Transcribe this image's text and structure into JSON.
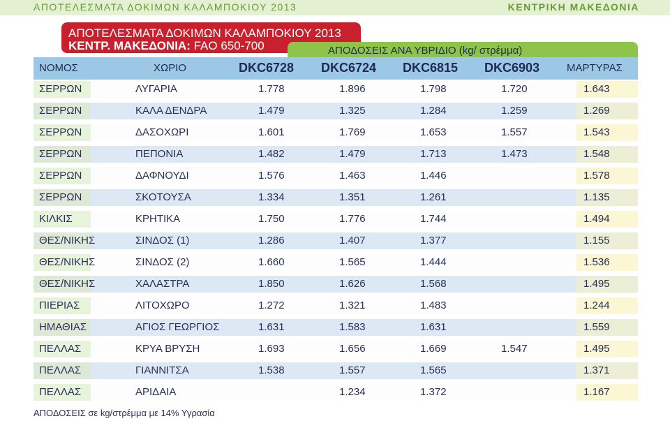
{
  "topbar": {
    "left": "ΑΠΟΤΕΛΕΣΜΑΤΑ ΔΟΚΙΜΩΝ ΚΑΛΑΜΠΟΚΙΟΥ 2013",
    "right": "ΚΕΝΤΡΙΚΗ ΜΑΚΕΔΟΝΙΑ"
  },
  "title": {
    "line1": "ΑΠΟΤΕΛΕΣΜΑΤΑ ΔΟΚΙΜΩΝ ΚΑΛΑΜΠΟΚΙΟΥ 2013",
    "line2_bold": "ΚΕΝΤΡ. ΜΑΚΕΔΟΝΙΑ:",
    "line2_rest": " FAO 650-700"
  },
  "group_header": "ΑΠΟΔΟΣΕΙΣ ΑΝΑ ΥΒΡΙΔΙΟ (kg/ στρέμμα)",
  "headers": {
    "nomos": "ΝΟΜΟΣ",
    "xorio": "ΧΩΡΙΟ",
    "h1": "DKC6728",
    "h2": "DKC6724",
    "h3": "DKC6815",
    "h4": "DKC6903",
    "martyras": "ΜΑΡΤΥΡΑΣ"
  },
  "rows": [
    [
      "ΣΕΡΡΩΝ",
      "ΛΥΓΑΡΙΑ",
      "1.778",
      "1.896",
      "1.798",
      "1.720",
      "1.643"
    ],
    [
      "ΣΕΡΡΩΝ",
      "ΚΑΛΑ ΔΕΝΔΡΑ",
      "1.479",
      "1.325",
      "1.284",
      "1.259",
      "1.269"
    ],
    [
      "ΣΕΡΡΩΝ",
      "ΔΑΣΟΧΩΡΙ",
      "1.601",
      "1.769",
      "1.653",
      "1.557",
      "1.543"
    ],
    [
      "ΣΕΡΡΩΝ",
      "ΠΕΠΟΝΙΑ",
      "1.482",
      "1.479",
      "1.713",
      "1.473",
      "1.548"
    ],
    [
      "ΣΕΡΡΩΝ",
      "ΔΑΦΝΟΥΔΙ",
      "1.576",
      "1.463",
      "1.446",
      "",
      "1.578"
    ],
    [
      "ΣΕΡΡΩΝ",
      "ΣΚΟΤΟΥΣΑ",
      "1.334",
      "1.351",
      "1.261",
      "",
      "1.135"
    ],
    [
      "ΚΙΛΚΙΣ",
      "ΚΡΗΤΙΚΑ",
      "1.750",
      "1.776",
      "1.744",
      "",
      "1.494"
    ],
    [
      "ΘΕΣ/ΝΙΚΗΣ",
      "ΣΙΝΔΟΣ (1)",
      "1.286",
      "1.407",
      "1.377",
      "",
      "1.155"
    ],
    [
      "ΘΕΣ/ΝΙΚΗΣ",
      "ΣΙΝΔΟΣ (2)",
      "1.660",
      "1.565",
      "1.444",
      "",
      "1.536"
    ],
    [
      "ΘΕΣ/ΝΙΚΗΣ",
      "ΧΑΛΑΣΤΡΑ",
      "1.850",
      "1.626",
      "1.568",
      "",
      "1.495"
    ],
    [
      "ΠΙΕΡΙΑΣ",
      "ΛΙΤΟΧΩΡΟ",
      "1.272",
      "1.321",
      "1.483",
      "",
      "1.244"
    ],
    [
      "ΗΜΑΘΙΑΣ",
      "ΑΓΙΟΣ ΓΕΩΡΓΙΟΣ",
      "1.631",
      "1.583",
      "1.631",
      "",
      "1.559"
    ],
    [
      "ΠΕΛΛΑΣ",
      "ΚΡΥΑ ΒΡΥΣΗ",
      "1.693",
      "1.656",
      "1.669",
      "1.547",
      "1.495"
    ],
    [
      "ΠΕΛΛΑΣ",
      "ΓΙΑΝΝΙΤΣΑ",
      "1.538",
      "1.557",
      "1.565",
      "",
      "1.371"
    ],
    [
      "ΠΕΛΛΑΣ",
      "ΑΡΙΔΑΙΑ",
      "",
      "1.234",
      "1.372",
      "",
      "1.167"
    ]
  ],
  "footer": "ΑΠΟΔΟΣΕΙΣ σε kg/στρέμμα με 14% Υγρασία",
  "colors": {
    "title_red": "#c8202c",
    "group_green": "#8fc44a",
    "header_blue": "#9cc8e6",
    "row_alt": "#dce9f5",
    "text_navy": "#2a2f55"
  }
}
